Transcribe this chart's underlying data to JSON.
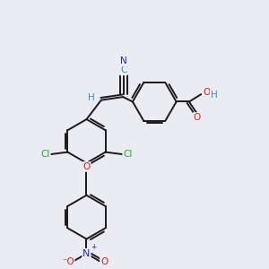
{
  "bg_color": "#ebebf2",
  "bond_color": "#1a1a1a",
  "bond_width": 1.4,
  "dbo": 0.09,
  "figsize": [
    3.0,
    3.0
  ],
  "dpi": 100,
  "colors": {
    "C": "#3a8fa8",
    "H": "#3a8fa8",
    "N": "#2222cc",
    "O": "#cc2222",
    "Cl": "#22aa22",
    "bond": "#1a1a1a"
  }
}
